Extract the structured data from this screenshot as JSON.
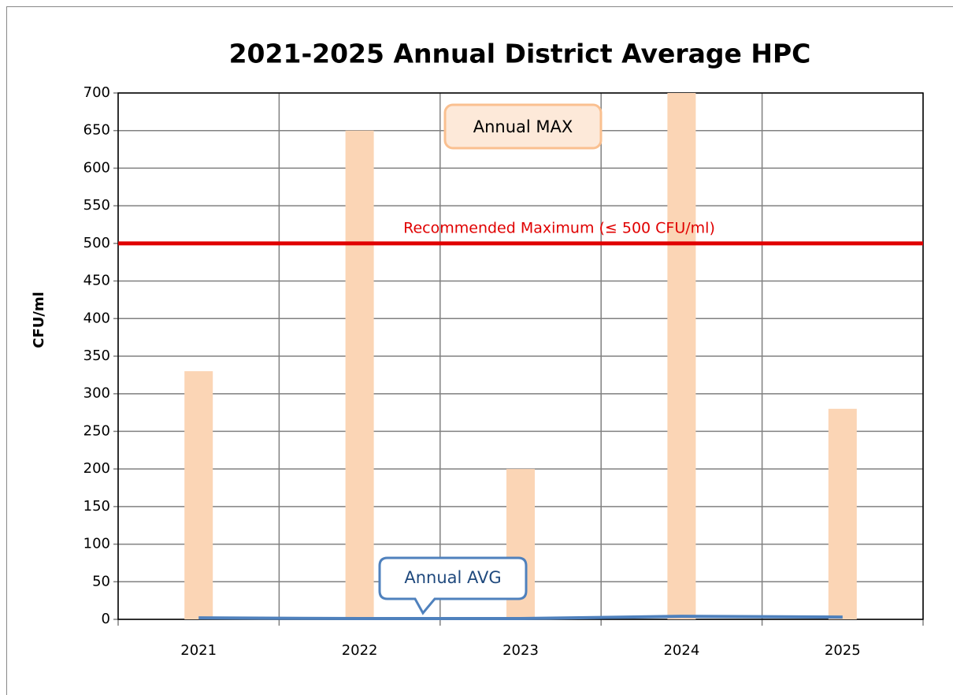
{
  "chart_data": {
    "type": "bar",
    "title": "2021-2025 Annual District Average HPC",
    "y_label": "CFU/ml",
    "categories": [
      "2021",
      "2022",
      "2023",
      "2024",
      "2025"
    ],
    "series": [
      {
        "name": "Annual MAX",
        "type": "bar",
        "color": "#fbd5b5",
        "values": [
          330,
          650,
          200,
          700,
          280
        ]
      },
      {
        "name": "Annual AVG",
        "type": "line",
        "color": "#4f81bd",
        "values": [
          2,
          1,
          1,
          4,
          3
        ]
      }
    ],
    "reference_line": {
      "value": 500,
      "label": "Recommended Maximum  (≤ 500 CFU/ml)",
      "color": "#e00000"
    },
    "ylim": [
      0,
      700
    ],
    "yticks": [
      0,
      50,
      100,
      150,
      200,
      250,
      300,
      350,
      400,
      450,
      500,
      550,
      600,
      650,
      700
    ],
    "grid": true
  }
}
